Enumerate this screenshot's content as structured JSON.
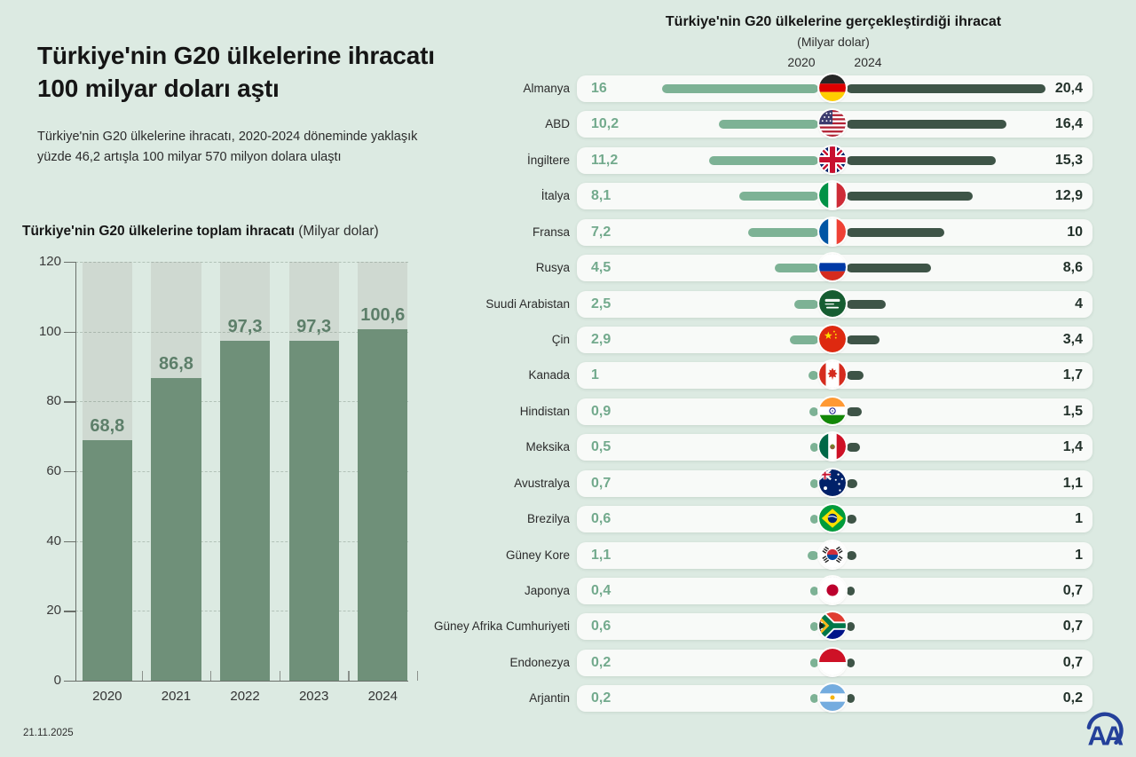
{
  "page": {
    "date": "21.11.2025",
    "background_color": "#dceae2",
    "brand": {
      "logo": "AA (Anadolu Ajansı) monogram",
      "logo_color": "#24409A"
    }
  },
  "headline": {
    "title": "Türkiye'nin G20 ülkelerine ihracatı 100 milyar doları aştı",
    "subtitle": "Türkiye'nin G20 ülkelerine ihracatı, 2020-2024 döneminde yaklaşık yüzde 46,2 artışla 100 milyar 570 milyon dolara ulaştı"
  },
  "chart_data": [
    {
      "type": "bar",
      "title": "Türkiye'nin G20 ülkelerine toplam ihracatı",
      "unit": "(Milyar dolar)",
      "categories": [
        "2020",
        "2021",
        "2022",
        "2023",
        "2024"
      ],
      "values": [
        68.8,
        86.8,
        97.3,
        97.3,
        100.6
      ],
      "value_labels": [
        "68,8",
        "86,8",
        "97,3",
        "97,3",
        "100,6"
      ],
      "ylim": [
        0,
        120
      ],
      "yticks": [
        0,
        20,
        40,
        60,
        80,
        100,
        120
      ],
      "grid": "dashed-horizontal",
      "colors": {
        "bar": "#6f9079",
        "background_track": "#cfd9d1",
        "value_label": "#5d7f6a"
      }
    },
    {
      "type": "bar",
      "variant": "paired-horizontal-from-center",
      "title": "Türkiye'nin G20 ülkelerine gerçekleştirdiği ihracat",
      "unit": "(Milyar dolar)",
      "series_labels": [
        "2020",
        "2024"
      ],
      "axis_max": 20.4,
      "colors": {
        "series_2020": "#7db295",
        "series_2024": "#3e5447",
        "label_2020": "#73aa8d",
        "label_2024": "#22312a"
      },
      "rows": [
        {
          "country": "Almanya",
          "flag": "germany",
          "values": [
            16,
            20.4
          ],
          "labels": [
            "16",
            "20,4"
          ]
        },
        {
          "country": "ABD",
          "flag": "usa",
          "values": [
            10.2,
            16.4
          ],
          "labels": [
            "10,2",
            "16,4"
          ]
        },
        {
          "country": "İngiltere",
          "flag": "uk",
          "values": [
            11.2,
            15.3
          ],
          "labels": [
            "11,2",
            "15,3"
          ]
        },
        {
          "country": "İtalya",
          "flag": "italy",
          "values": [
            8.1,
            12.9
          ],
          "labels": [
            "8,1",
            "12,9"
          ]
        },
        {
          "country": "Fransa",
          "flag": "france",
          "values": [
            7.2,
            10
          ],
          "labels": [
            "7,2",
            "10"
          ]
        },
        {
          "country": "Rusya",
          "flag": "russia",
          "values": [
            4.5,
            8.6
          ],
          "labels": [
            "4,5",
            "8,6"
          ]
        },
        {
          "country": "Suudi Arabistan",
          "flag": "saudiarabia",
          "values": [
            2.5,
            4
          ],
          "labels": [
            "2,5",
            "4"
          ]
        },
        {
          "country": "Çin",
          "flag": "china",
          "values": [
            2.9,
            3.4
          ],
          "labels": [
            "2,9",
            "3,4"
          ]
        },
        {
          "country": "Kanada",
          "flag": "canada",
          "values": [
            1,
            1.7
          ],
          "labels": [
            "1",
            "1,7"
          ]
        },
        {
          "country": "Hindistan",
          "flag": "india",
          "values": [
            0.9,
            1.5
          ],
          "labels": [
            "0,9",
            "1,5"
          ]
        },
        {
          "country": "Meksika",
          "flag": "mexico",
          "values": [
            0.5,
            1.4
          ],
          "labels": [
            "0,5",
            "1,4"
          ]
        },
        {
          "country": "Avustralya",
          "flag": "australia",
          "values": [
            0.7,
            1.1
          ],
          "labels": [
            "0,7",
            "1,1"
          ]
        },
        {
          "country": "Brezilya",
          "flag": "brazil",
          "values": [
            0.6,
            1
          ],
          "labels": [
            "0,6",
            "1"
          ]
        },
        {
          "country": "Güney Kore",
          "flag": "southkorea",
          "values": [
            1.1,
            1
          ],
          "labels": [
            "1,1",
            "1"
          ]
        },
        {
          "country": "Japonya",
          "flag": "japan",
          "values": [
            0.4,
            0.7
          ],
          "labels": [
            "0,4",
            "0,7"
          ]
        },
        {
          "country": "Güney Afrika Cumhuriyeti",
          "flag": "southafrica",
          "values": [
            0.6,
            0.7
          ],
          "labels": [
            "0,6",
            "0,7"
          ]
        },
        {
          "country": "Endonezya",
          "flag": "indonesia",
          "values": [
            0.2,
            0.7
          ],
          "labels": [
            "0,2",
            "0,7"
          ]
        },
        {
          "country": "Arjantin",
          "flag": "argentina",
          "values": [
            0.2,
            0.2
          ],
          "labels": [
            "0,2",
            "0,2"
          ]
        }
      ]
    }
  ]
}
